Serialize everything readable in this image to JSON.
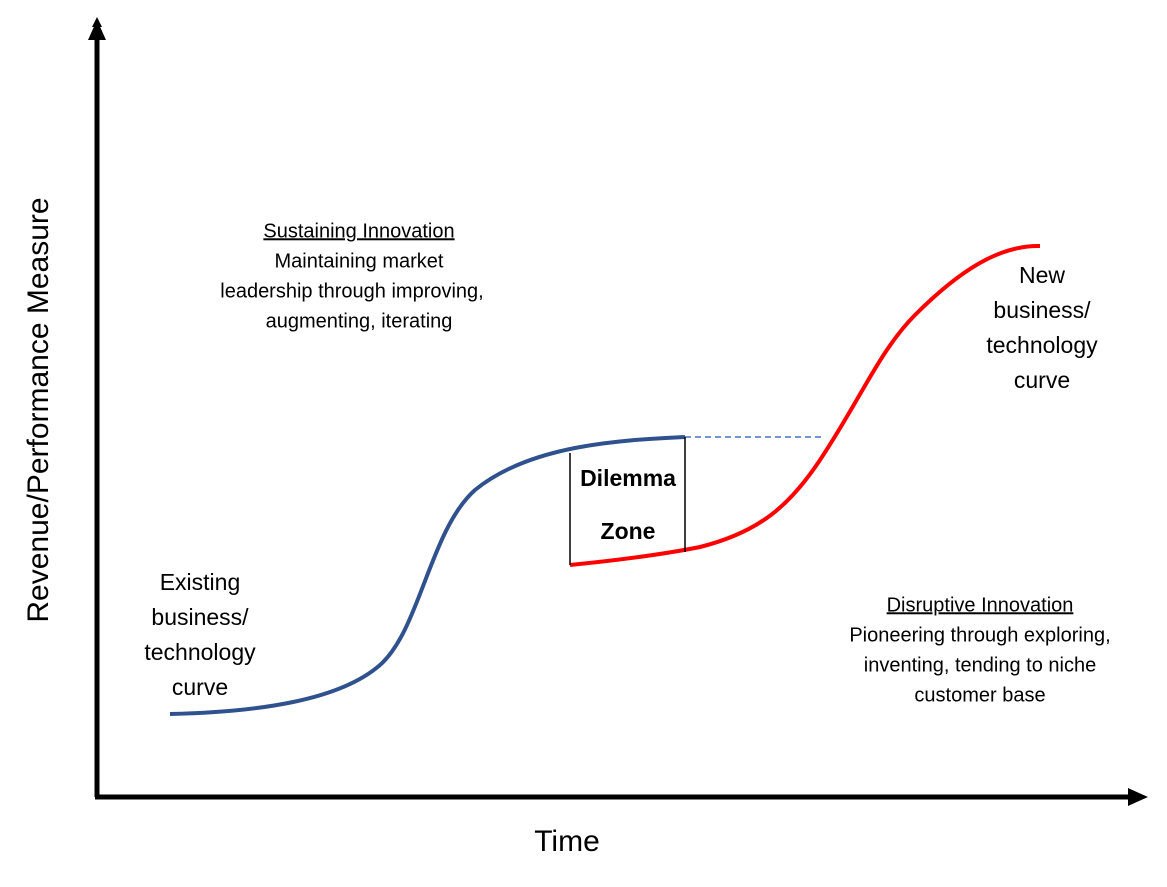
{
  "axes": {
    "y_label": "Revenue/Performance Measure",
    "x_label": "Time"
  },
  "sustaining": {
    "title": "Sustaining Innovation",
    "lines": [
      "Maintaining market",
      "leadership through improving,",
      "augmenting, iterating"
    ]
  },
  "disruptive": {
    "title": "Disruptive Innovation",
    "lines": [
      "Pioneering through exploring,",
      "inventing, tending to niche",
      "customer base"
    ]
  },
  "existing": {
    "lines": [
      "Existing",
      "business/",
      "technology",
      "curve"
    ]
  },
  "new": {
    "lines": [
      "New",
      "business/",
      "technology",
      "curve"
    ]
  },
  "dilemma": {
    "lines": [
      "Dilemma",
      "Zone"
    ]
  }
}
